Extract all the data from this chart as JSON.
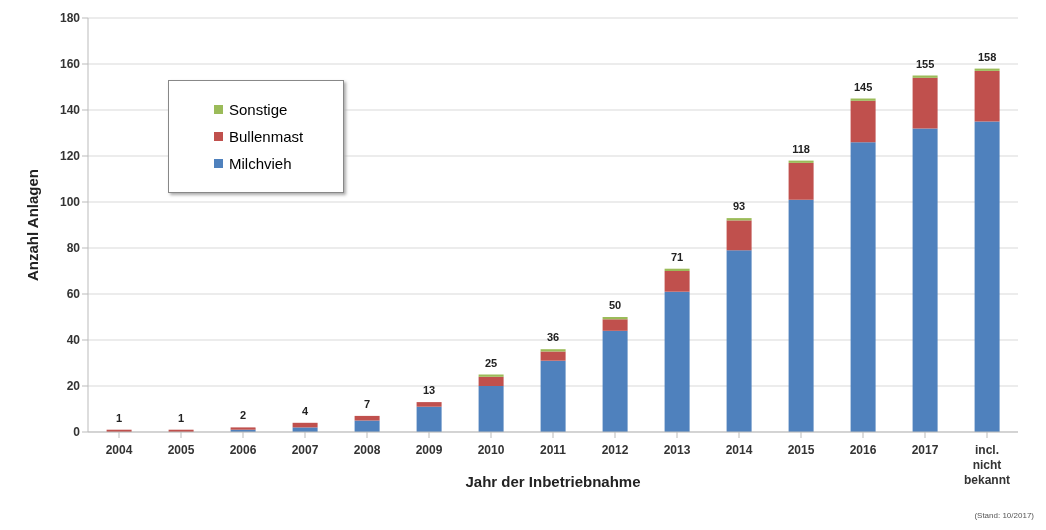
{
  "chart_data": {
    "type": "bar",
    "stacked": true,
    "xlabel": "Jahr der Inbetriebnahme",
    "ylabel": "Anzahl Anlagen",
    "categories": [
      "2004",
      "2005",
      "2006",
      "2007",
      "2008",
      "2009",
      "2010",
      "2011",
      "2012",
      "2013",
      "2014",
      "2015",
      "2016",
      "2017",
      "incl. nicht bekannt"
    ],
    "series": [
      {
        "name": "Milchvieh",
        "color": "#4f81bd",
        "values": [
          0,
          0,
          1,
          2,
          5,
          11,
          20,
          31,
          44,
          61,
          79,
          101,
          126,
          132,
          135
        ]
      },
      {
        "name": "Bullenmast",
        "color": "#c0504d",
        "values": [
          1,
          1,
          1,
          2,
          2,
          2,
          4,
          4,
          5,
          9,
          13,
          16,
          18,
          22,
          22
        ]
      },
      {
        "name": "Sonstige",
        "color": "#9bbb59",
        "values": [
          0,
          0,
          0,
          0,
          0,
          0,
          1,
          1,
          1,
          1,
          1,
          1,
          1,
          1,
          1
        ]
      }
    ],
    "totals": [
      "1",
      "1",
      "2",
      "4",
      "7",
      "13",
      "25",
      "36",
      "50",
      "71",
      "93",
      "118",
      "145",
      "155",
      "158"
    ],
    "ylim": [
      0,
      180
    ],
    "yticks": [
      0,
      20,
      40,
      60,
      80,
      100,
      120,
      140,
      160,
      180
    ],
    "grid": "y",
    "legend": "top left",
    "annotations": [
      "(Stand: 10/2017)"
    ]
  }
}
